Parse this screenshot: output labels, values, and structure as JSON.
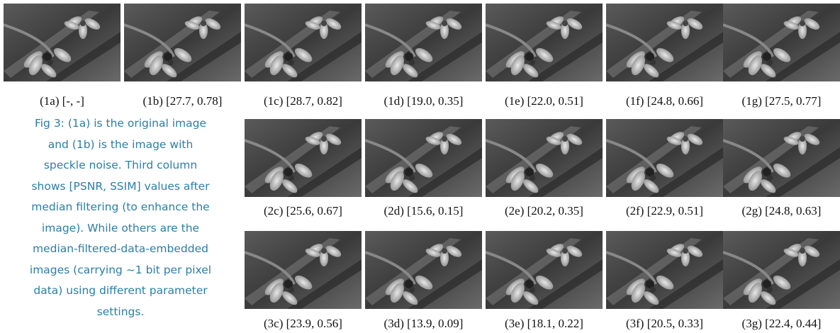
{
  "figure": {
    "rows": [
      {
        "captions": [
          "(1a) [-, -]",
          "(1b) [27.7, 0.78]",
          "(1c) [28.7, 0.82]",
          "(1d) [19.0, 0.35]",
          "(1e) [22.0, 0.51]",
          "(1f) [24.8, 0.66]",
          "(1g) [27.5, 0.77]"
        ]
      },
      {
        "captions": [
          "(2c) [25.6, 0.67]",
          "(2d) [15.6, 0.15]",
          "(2e) [20.2, 0.35]",
          "(2f) [22.9, 0.51]",
          "(2g) [24.8, 0.63]"
        ]
      },
      {
        "captions": [
          "(3c) [23.9, 0.56]",
          "(3d) [13.9, 0.09]",
          "(3e) [18.1, 0.22]",
          "(3f) [20.5, 0.33]",
          "(3g) [22.4, 0.44]"
        ]
      }
    ],
    "caption_lines": [
      "Fig 3: (1a) is the original image",
      "and (1b) is the image with",
      "speckle noise. Third column",
      "shows [PSNR, SSIM] values after",
      "median filtering (to enhance the",
      "image). While others are the",
      "median-filtered-data-embedded",
      "images (carrying ~1 bit per pixel",
      "data) using different parameter",
      "settings."
    ]
  }
}
